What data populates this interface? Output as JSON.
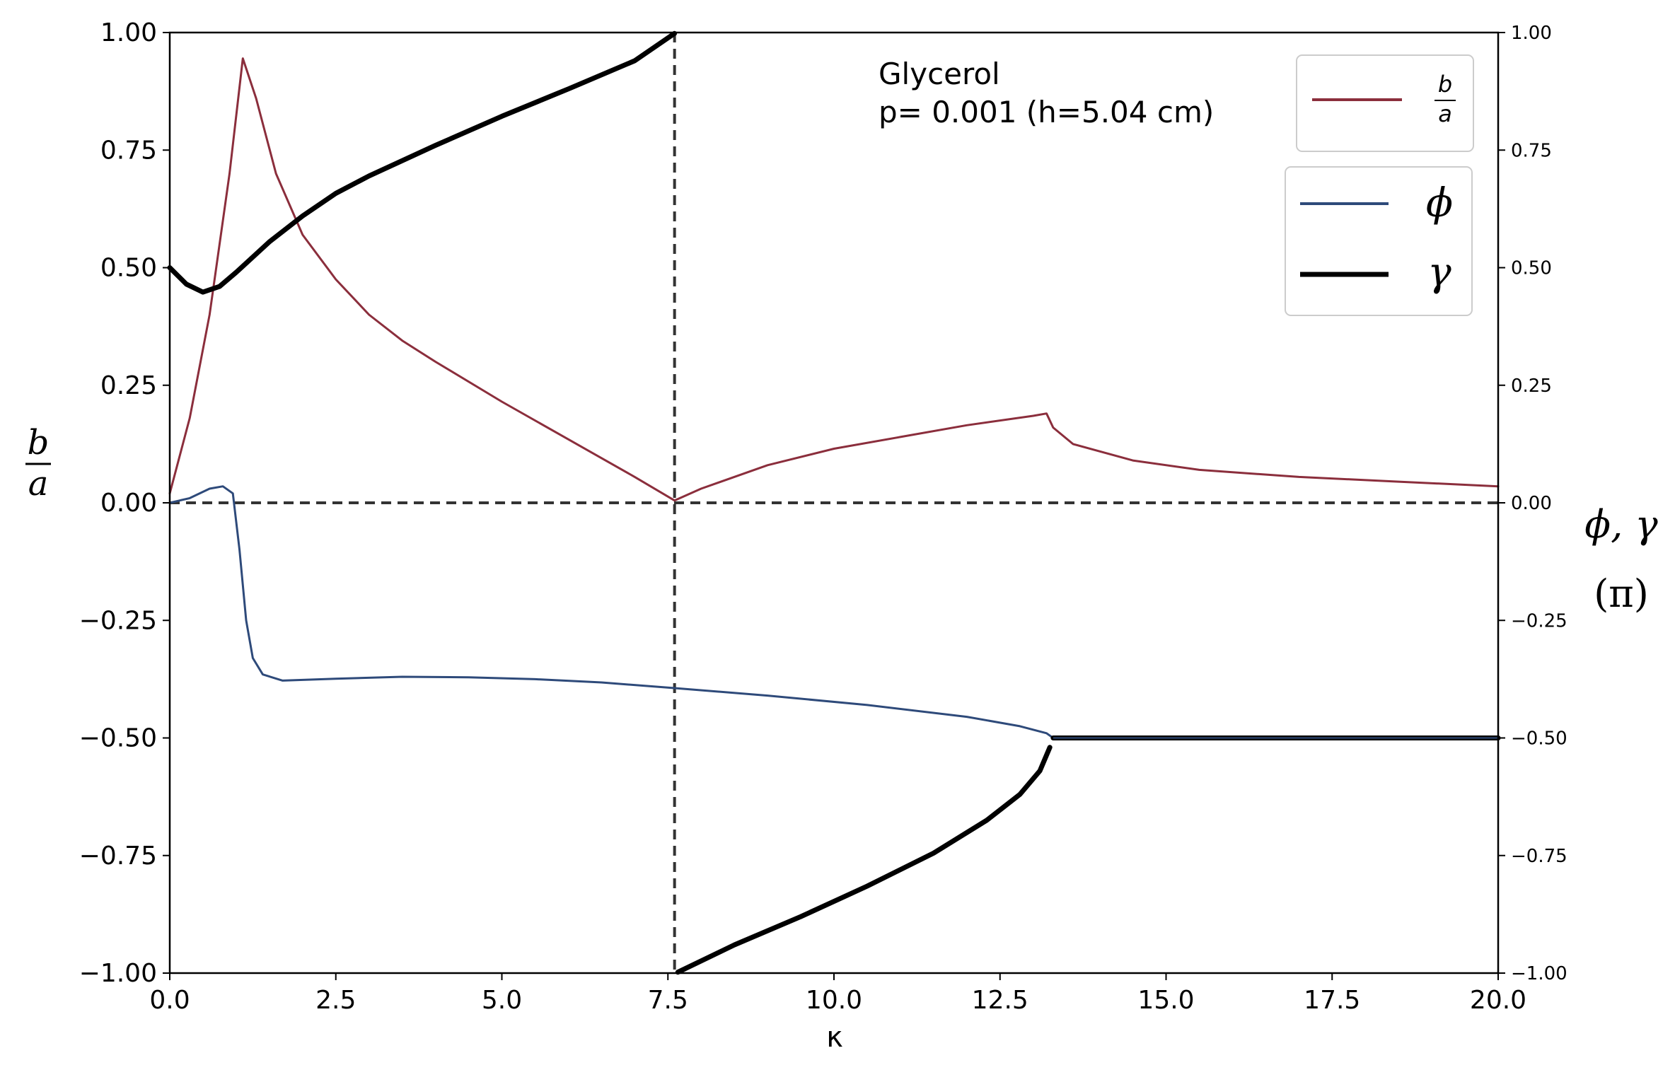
{
  "chart_data": {
    "type": "line",
    "xlabel": "κ",
    "ylabel_left": {
      "numerator": "b",
      "denominator": "a"
    },
    "ylabel_right": {
      "line1": "ϕ, γ",
      "line2": "(π)"
    },
    "xlim": [
      0,
      20
    ],
    "ylim_left": [
      -1,
      1
    ],
    "ylim_right": [
      -1,
      1
    ],
    "x_ticks": [
      0,
      2.5,
      5,
      7.5,
      10,
      12.5,
      15,
      17.5,
      20
    ],
    "x_tick_labels": [
      "0.0",
      "2.5",
      "5.0",
      "7.5",
      "10.0",
      "12.5",
      "15.0",
      "17.5",
      "20.0"
    ],
    "y_ticks": [
      -1,
      -0.75,
      -0.5,
      -0.25,
      0,
      0.25,
      0.5,
      0.75,
      1
    ],
    "y_left_tick_labels": [
      "−1.00",
      "−0.75",
      "−0.50",
      "−0.25",
      "0.00",
      "0.25",
      "0.50",
      "0.75",
      "1.00"
    ],
    "y_right_tick_labels": [
      "−1.00",
      "−0.75",
      "−0.50",
      "−0.25",
      "0.00",
      "0.25",
      "0.50",
      "0.75",
      "1.00"
    ],
    "annotation": {
      "line1": "Glycerol",
      "line2": "p= 0.001 (h=5.04 cm)"
    },
    "reference_lines": {
      "horizontal_y": 0,
      "vertical_x": 7.6
    },
    "grid": false,
    "legends": [
      {
        "placement": "top-right",
        "entries": [
          {
            "series": "b_over_a",
            "label_numerator": "b",
            "label_denominator": "a"
          }
        ]
      },
      {
        "placement": "top-right",
        "entries": [
          {
            "series": "phi",
            "label": "ϕ"
          },
          {
            "series": "gamma",
            "label": "γ"
          }
        ]
      }
    ],
    "series": [
      {
        "id": "b_over_a",
        "color": "#8b2e3c",
        "axis": "left",
        "points": [
          [
            0,
            0.02
          ],
          [
            0.3,
            0.18
          ],
          [
            0.6,
            0.4
          ],
          [
            0.9,
            0.7
          ],
          [
            1.1,
            0.945
          ],
          [
            1.3,
            0.86
          ],
          [
            1.6,
            0.7
          ],
          [
            2.0,
            0.57
          ],
          [
            2.5,
            0.475
          ],
          [
            3.0,
            0.4
          ],
          [
            3.5,
            0.345
          ],
          [
            4.0,
            0.3
          ],
          [
            5.0,
            0.215
          ],
          [
            6.0,
            0.135
          ],
          [
            7.0,
            0.055
          ],
          [
            7.6,
            0.005
          ],
          [
            8.0,
            0.03
          ],
          [
            9.0,
            0.08
          ],
          [
            10.0,
            0.115
          ],
          [
            11.0,
            0.14
          ],
          [
            12.0,
            0.165
          ],
          [
            13.0,
            0.185
          ],
          [
            13.2,
            0.19
          ],
          [
            13.3,
            0.16
          ],
          [
            13.6,
            0.125
          ],
          [
            14.5,
            0.09
          ],
          [
            15.5,
            0.07
          ],
          [
            17.0,
            0.055
          ],
          [
            18.5,
            0.045
          ],
          [
            20.0,
            0.035
          ]
        ]
      },
      {
        "id": "phi",
        "color": "#2e4a7a",
        "axis": "right",
        "points": [
          [
            0,
            0.0
          ],
          [
            0.3,
            0.01
          ],
          [
            0.6,
            0.03
          ],
          [
            0.8,
            0.035
          ],
          [
            0.95,
            0.02
          ],
          [
            1.05,
            -0.1
          ],
          [
            1.15,
            -0.25
          ],
          [
            1.25,
            -0.33
          ],
          [
            1.4,
            -0.365
          ],
          [
            1.7,
            -0.378
          ],
          [
            2.5,
            -0.374
          ],
          [
            3.5,
            -0.37
          ],
          [
            4.5,
            -0.371
          ],
          [
            5.5,
            -0.375
          ],
          [
            6.5,
            -0.382
          ],
          [
            7.6,
            -0.394
          ],
          [
            9.0,
            -0.41
          ],
          [
            10.5,
            -0.43
          ],
          [
            12.0,
            -0.455
          ],
          [
            12.8,
            -0.475
          ],
          [
            13.2,
            -0.49
          ],
          [
            13.3,
            -0.5
          ],
          [
            20.0,
            -0.5
          ]
        ]
      },
      {
        "id": "gamma",
        "color": "#000000",
        "axis": "right",
        "segments": [
          [
            [
              0,
              0.5
            ],
            [
              0.25,
              0.465
            ],
            [
              0.5,
              0.448
            ],
            [
              0.75,
              0.46
            ],
            [
              1.0,
              0.49
            ],
            [
              1.5,
              0.555
            ],
            [
              2.0,
              0.61
            ],
            [
              2.5,
              0.658
            ],
            [
              3.0,
              0.695
            ],
            [
              4.0,
              0.76
            ],
            [
              5.0,
              0.822
            ],
            [
              6.0,
              0.88
            ],
            [
              7.0,
              0.94
            ],
            [
              7.6,
              0.998
            ]
          ],
          [
            [
              7.65,
              -0.998
            ],
            [
              8.5,
              -0.94
            ],
            [
              9.5,
              -0.88
            ],
            [
              10.5,
              -0.815
            ],
            [
              11.5,
              -0.745
            ],
            [
              12.3,
              -0.675
            ],
            [
              12.8,
              -0.62
            ],
            [
              13.1,
              -0.57
            ],
            [
              13.25,
              -0.52
            ]
          ],
          [
            [
              13.3,
              -0.5
            ],
            [
              20.0,
              -0.5
            ]
          ]
        ]
      }
    ]
  }
}
